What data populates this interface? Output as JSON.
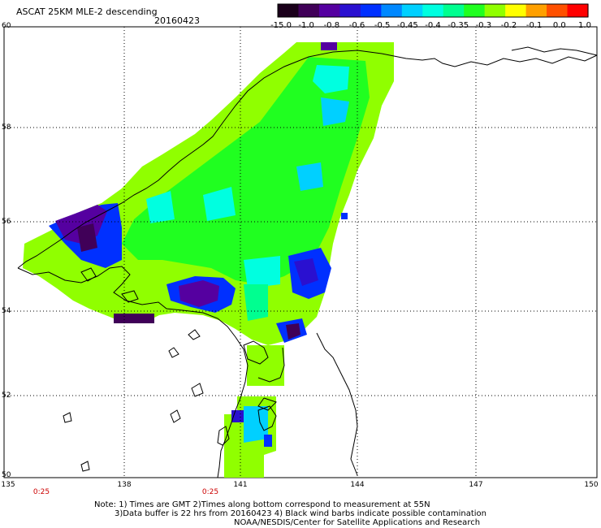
{
  "header": {
    "title": "ASCAT 25KM MLE-2 descending",
    "date": "20160423"
  },
  "colorbar": {
    "labels": [
      "-15.0",
      "-1.0",
      "-0.8",
      "-0.6",
      "-0.5",
      "-0.45",
      "-0.4",
      "-0.35",
      "-0.3",
      "-0.2",
      "-0.1",
      "0.0",
      "1.0"
    ],
    "colors": [
      "#1a001a",
      "#400058",
      "#5500a0",
      "#2a10d0",
      "#0030ff",
      "#0088ff",
      "#00d0ff",
      "#00ffe0",
      "#00ff90",
      "#20ff20",
      "#90ff00",
      "#ffff00",
      "#ffa000",
      "#ff5000",
      "#ff0000"
    ]
  },
  "axes": {
    "lat_labels": [
      "60",
      "58",
      "56",
      "54",
      "52",
      "50"
    ],
    "lon_labels": [
      "135",
      "138",
      "141",
      "144",
      "147",
      "150"
    ],
    "time_labels": [
      "0:25",
      "0:25"
    ]
  },
  "notes": {
    "line1": "Note: 1) Times are GMT 2)Times along bottom correspond to measurement at 55N",
    "line2": "3)Data buffer is 22 hrs from 20160423 4) Black wind barbs indicate possible contamination",
    "line3": "NOAA/NESDIS/Center for Satellite Applications and Research"
  },
  "palette": {
    "lime": "#90ff00",
    "green": "#20ff20",
    "mint": "#00ff90",
    "cyan": "#00ffe0",
    "sky": "#00d0ff",
    "blue": "#0030ff",
    "indigo": "#2a10d0",
    "purple": "#5500a0",
    "dark": "#400058"
  }
}
